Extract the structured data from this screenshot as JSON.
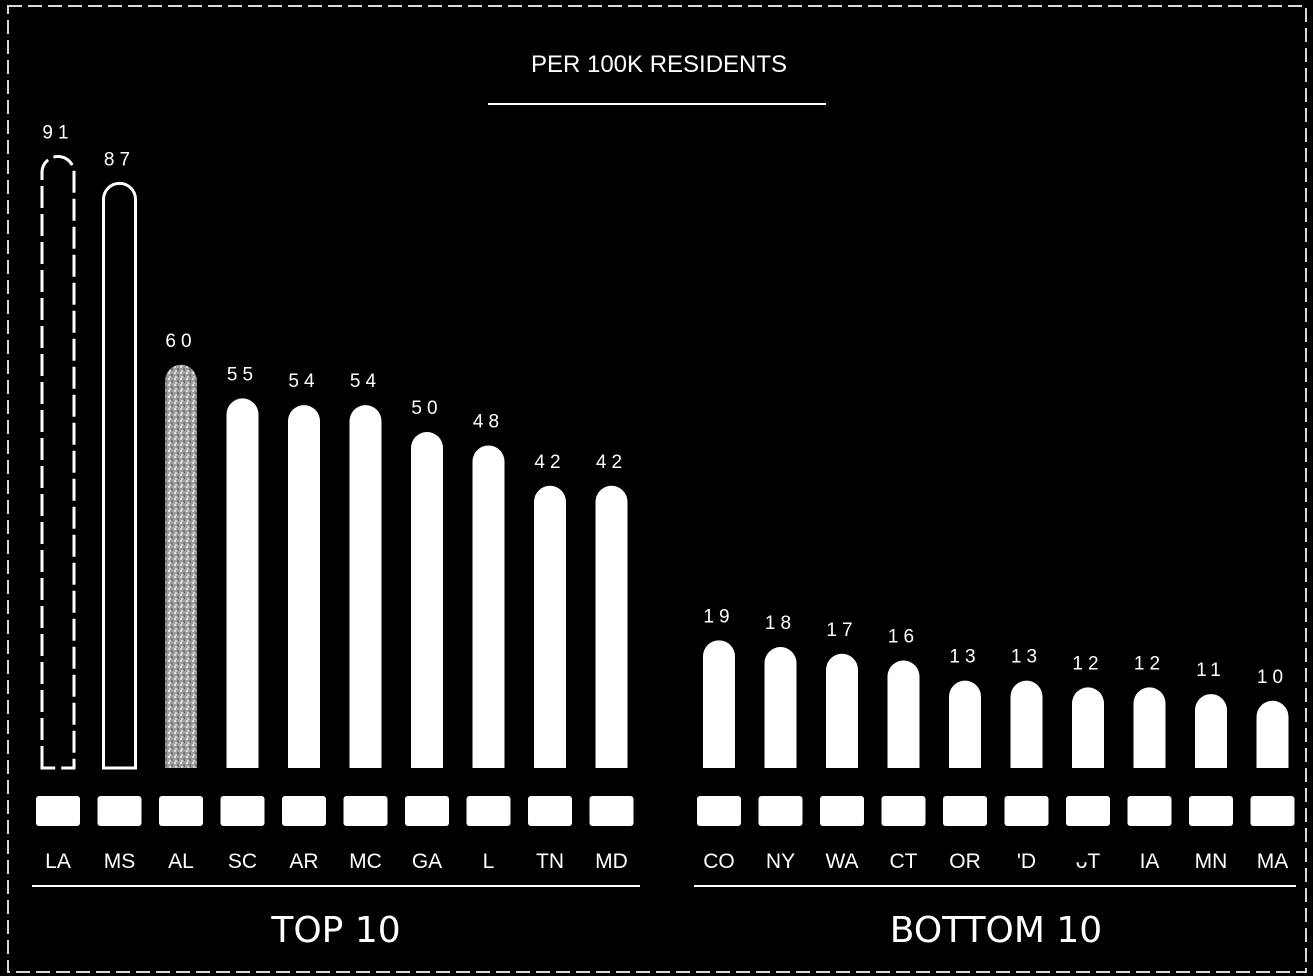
{
  "chart_data": {
    "type": "bar",
    "title": "PER 100K RESIDENTS",
    "groups": [
      {
        "label": "TOP 10",
        "categories": [
          "LA",
          "MS",
          "AL",
          "SC",
          "AR",
          "MC",
          "GA",
          "L",
          "TN",
          "MD"
        ],
        "values": [
          91,
          87,
          60,
          55,
          54,
          54,
          50,
          48,
          42,
          42
        ]
      },
      {
        "label": "BOTTOM 10",
        "categories": [
          "CO",
          "NY",
          "WA",
          "CT",
          "OR",
          "'D",
          "ᴗT",
          "IA",
          "MN",
          "MA"
        ],
        "values": [
          19,
          18,
          17,
          16,
          13,
          13,
          12,
          12,
          11,
          10
        ]
      }
    ],
    "bar_styles": {
      "LA": "outline-dashed",
      "MS": "outline",
      "AL": "textured",
      "default": "solid"
    },
    "colors": {
      "background": "#000000",
      "bar": "#ffffff",
      "text": "#ffffff",
      "textured_bar": "#bdbdbd"
    },
    "ylim": [
      0,
      100
    ],
    "grid": false,
    "legend": "none"
  }
}
